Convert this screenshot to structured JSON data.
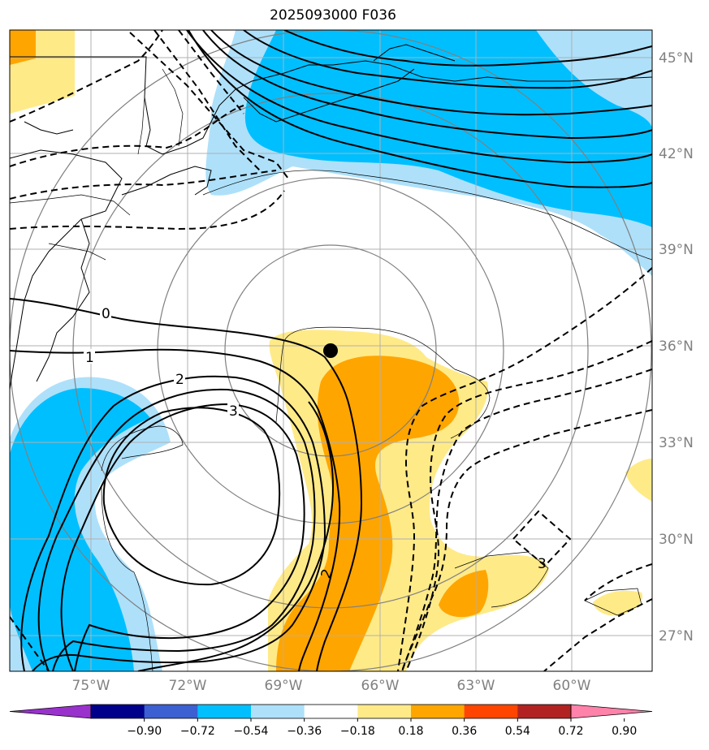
{
  "title": "2025093000 F036",
  "lat_labels": [
    "45°N",
    "42°N",
    "39°N",
    "36°N",
    "33°N",
    "30°N",
    "27°N"
  ],
  "lon_labels": [
    "75°W",
    "72°W",
    "69°W",
    "66°W",
    "63°W",
    "60°W"
  ],
  "colorbar": {
    "colors": [
      "#9932cc",
      "#00008b",
      "#3c5fd2",
      "#00bfff",
      "#aee0fa",
      "#ffffff",
      "#ffea88",
      "#ffa500",
      "#ff4500",
      "#b22222",
      "#ff82ab"
    ],
    "tick_labels": [
      "−0.90",
      "−0.72",
      "−0.54",
      "−0.36",
      "−0.18",
      "0.18",
      "0.36",
      "0.54",
      "0.72",
      "0.90"
    ]
  },
  "contour_labels": {
    "zero": "0",
    "one": "1",
    "two": "2",
    "three": "3",
    "two_east": "2",
    "neg_three": "3"
  },
  "colors": {
    "light_blue": "#aee0fa",
    "deep_sky_blue": "#00bfff",
    "light_yellow": "#ffea88",
    "orange": "#ffa500",
    "grid": "#b0b0b0",
    "range_rings": "#808080"
  }
}
